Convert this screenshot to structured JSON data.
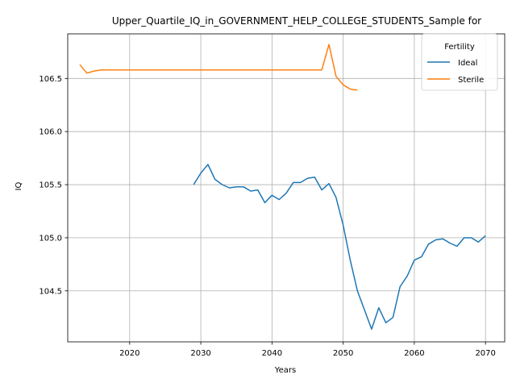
{
  "chart_data": {
    "type": "line",
    "title": "Upper_Quartile_IQ_in_GOVERNMENT_HELP_COLLEGE_STUDENTS_Sample for",
    "xlabel": "Years",
    "ylabel": "IQ",
    "xlim": [
      2011.3,
      2072.7
    ],
    "ylim": [
      104.02,
      106.92
    ],
    "xticks": [
      2020,
      2030,
      2040,
      2050,
      2060,
      2070
    ],
    "yticks": [
      104.5,
      105.0,
      105.5,
      106.0,
      106.5
    ],
    "ytick_labels": [
      "104.5",
      "105.0",
      "105.5",
      "106.0",
      "106.5"
    ],
    "grid": true,
    "legend": {
      "title": "Fertility",
      "placement": "top-right"
    },
    "series": [
      {
        "name": "Ideal",
        "color": "#1f77b4",
        "x": [
          2029,
          2030,
          2031,
          2032,
          2033,
          2034,
          2035,
          2036,
          2037,
          2038,
          2039,
          2040,
          2041,
          2042,
          2043,
          2044,
          2045,
          2046,
          2047,
          2048,
          2049,
          2050,
          2051,
          2052,
          2053,
          2054,
          2055,
          2056,
          2057,
          2058,
          2059,
          2060,
          2061,
          2062,
          2063,
          2064,
          2065,
          2066,
          2067,
          2068,
          2069,
          2070
        ],
        "y": [
          105.5,
          105.61,
          105.69,
          105.55,
          105.5,
          105.47,
          105.48,
          105.48,
          105.44,
          105.45,
          105.33,
          105.4,
          105.36,
          105.42,
          105.52,
          105.52,
          105.56,
          105.57,
          105.45,
          105.51,
          105.38,
          105.12,
          104.79,
          104.5,
          104.32,
          104.14,
          104.34,
          104.2,
          104.25,
          104.54,
          104.64,
          104.79,
          104.82,
          104.94,
          104.98,
          104.99,
          104.95,
          104.92,
          105.0,
          105.0,
          104.96,
          105.02
        ]
      },
      {
        "name": "Sterile",
        "color": "#ff7f0e",
        "x": [
          2013,
          2014,
          2015,
          2016,
          2017,
          2018,
          2019,
          2020,
          2021,
          2022,
          2023,
          2024,
          2025,
          2026,
          2027,
          2028,
          2029,
          2030,
          2031,
          2032,
          2033,
          2034,
          2035,
          2036,
          2037,
          2038,
          2039,
          2040,
          2041,
          2042,
          2043,
          2044,
          2045,
          2046,
          2047,
          2048,
          2049,
          2050,
          2051,
          2052
        ],
        "y": [
          106.63,
          106.55,
          106.57,
          106.58,
          106.58,
          106.58,
          106.58,
          106.58,
          106.58,
          106.58,
          106.58,
          106.58,
          106.58,
          106.58,
          106.58,
          106.58,
          106.58,
          106.58,
          106.58,
          106.58,
          106.58,
          106.58,
          106.58,
          106.58,
          106.58,
          106.58,
          106.58,
          106.58,
          106.58,
          106.58,
          106.58,
          106.58,
          106.58,
          106.58,
          106.58,
          106.82,
          106.52,
          106.44,
          106.4,
          106.39
        ]
      }
    ]
  }
}
